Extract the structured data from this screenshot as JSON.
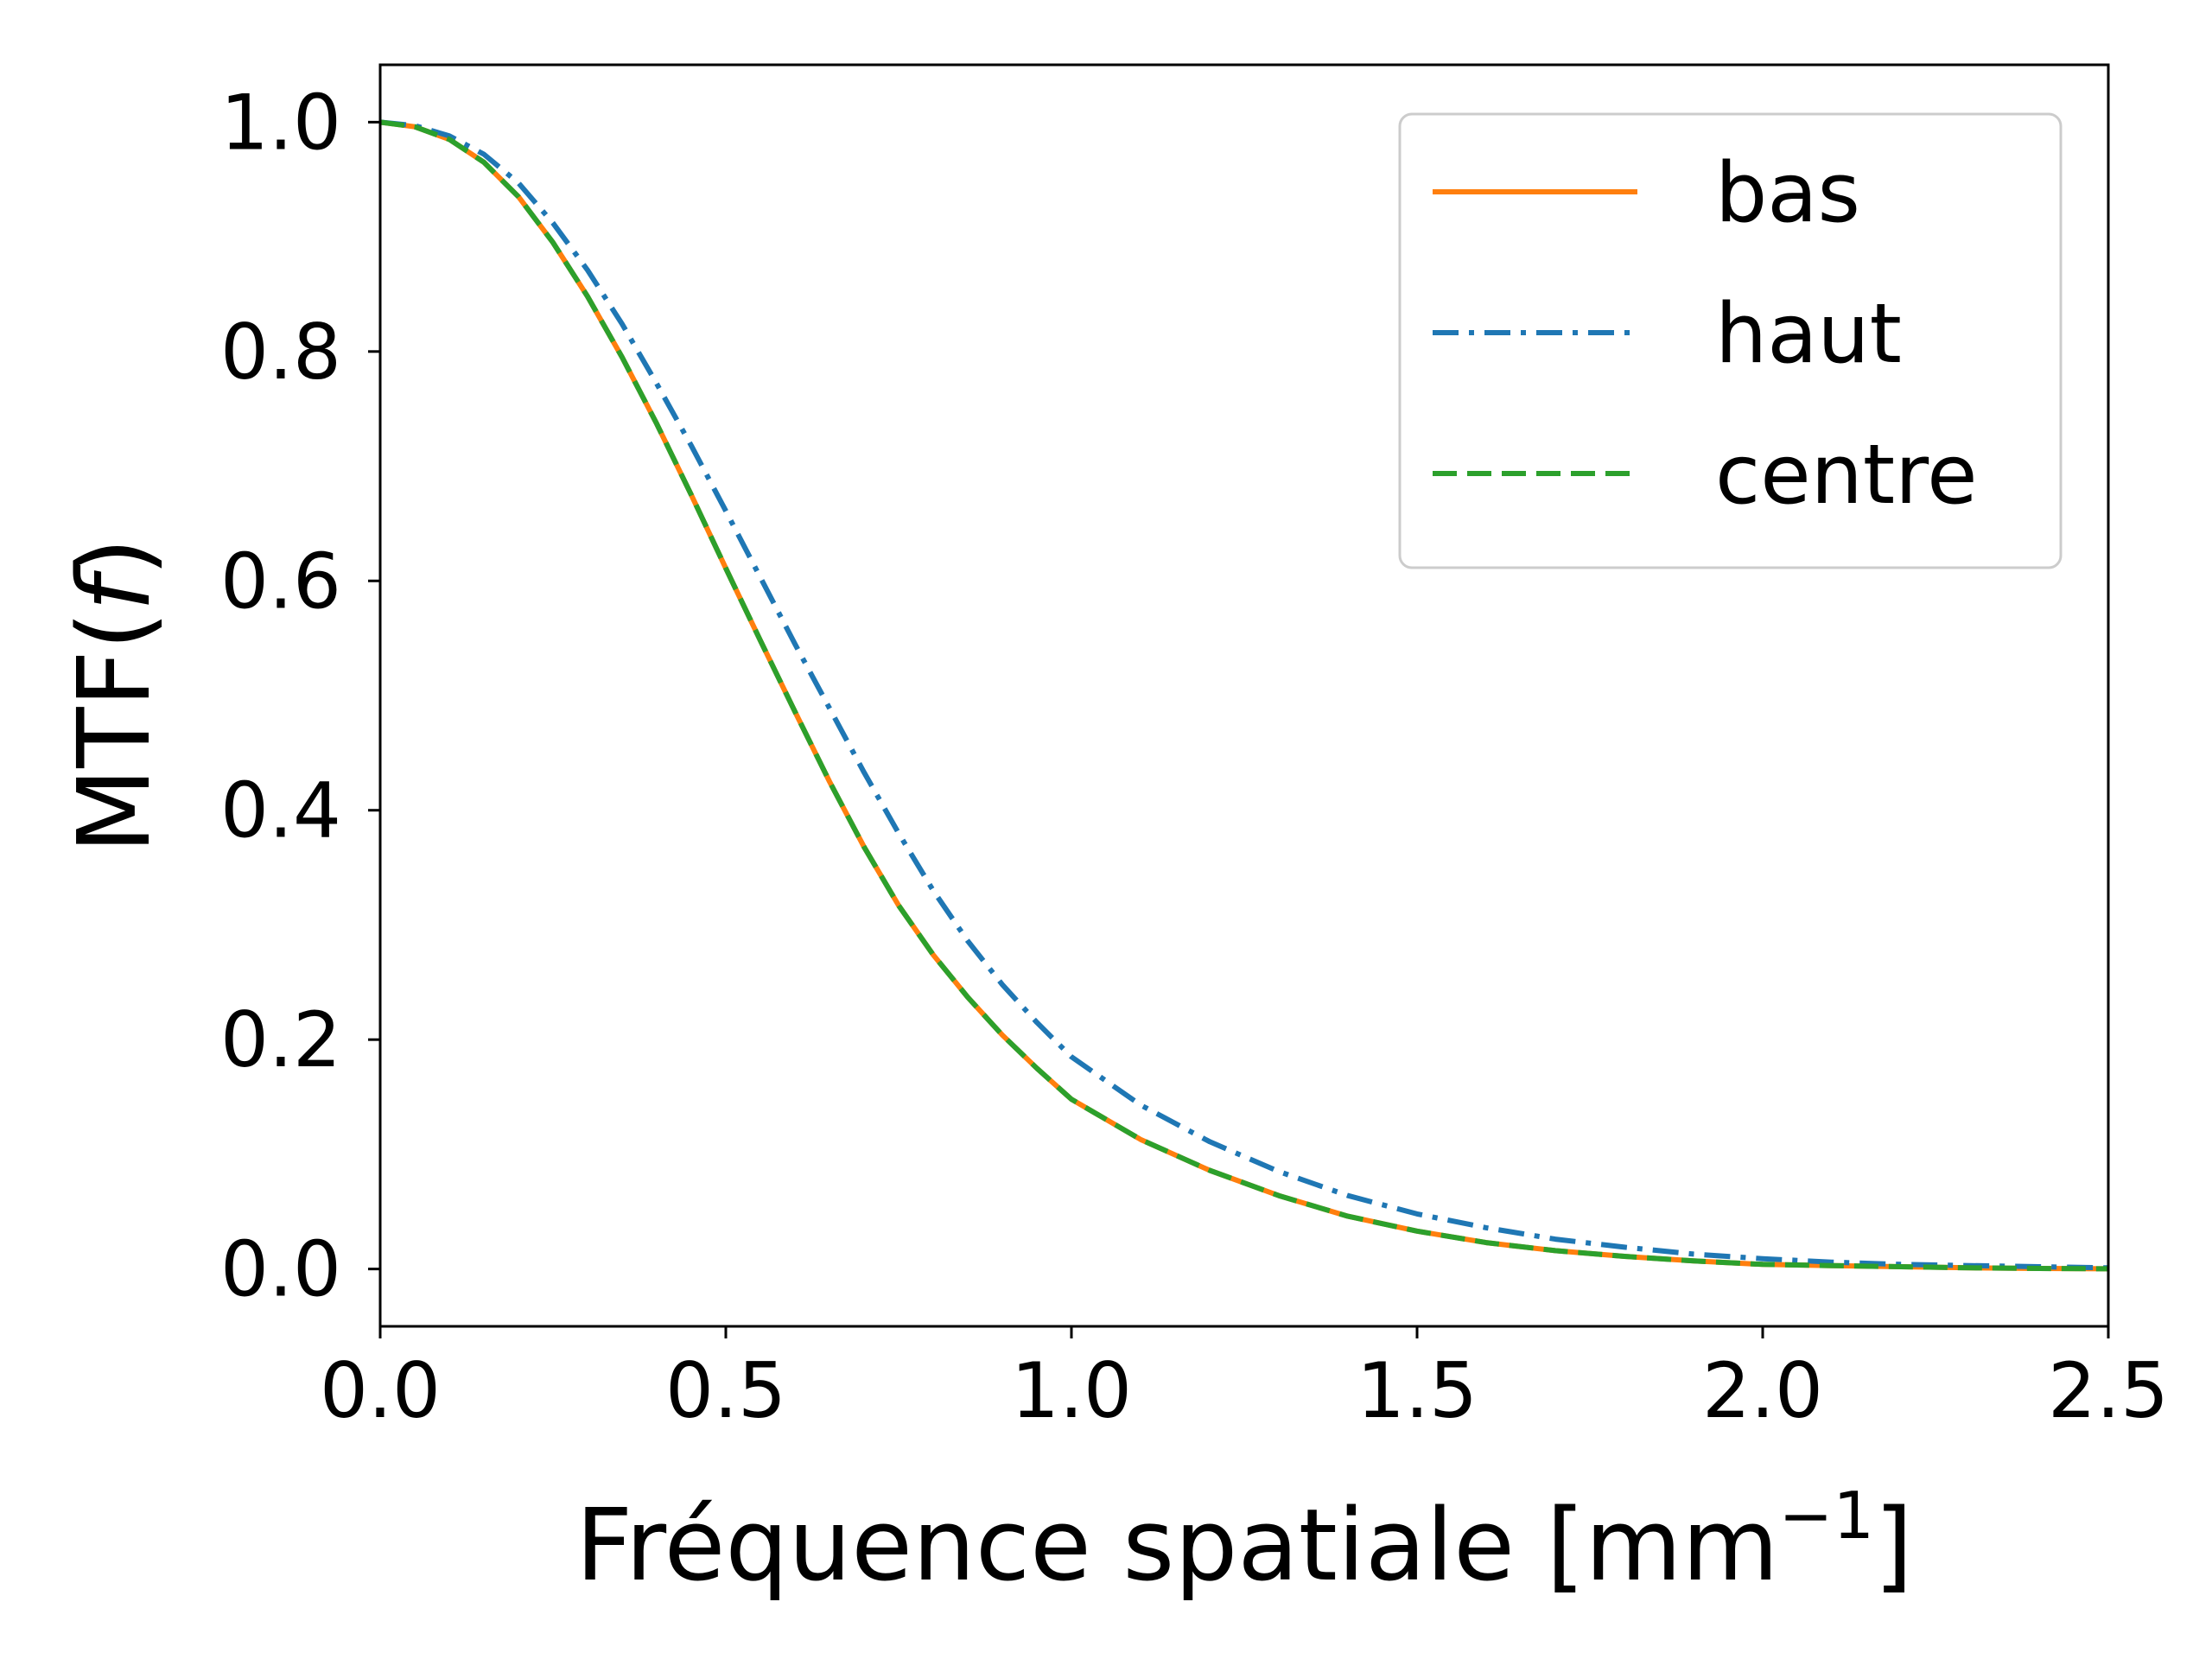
{
  "chart_data": {
    "type": "line",
    "xlabel": "Fréquence spatiale [mm",
    "xlabel_exp": "−1",
    "xlabel_end": "]",
    "ylabel_pre": "MTF(",
    "ylabel_var": "f",
    "ylabel_post": ")",
    "xlim": [
      0.0,
      2.5
    ],
    "ylim": [
      -0.05,
      1.05
    ],
    "xticks": [
      0.0,
      0.5,
      1.0,
      1.5,
      2.0,
      2.5
    ],
    "xtick_labels": [
      "0.0",
      "0.5",
      "1.0",
      "1.5",
      "2.0",
      "2.5"
    ],
    "yticks": [
      0.0,
      0.2,
      0.4,
      0.6,
      0.8,
      1.0
    ],
    "ytick_labels": [
      "0.0",
      "0.2",
      "0.4",
      "0.6",
      "0.8",
      "1.0"
    ],
    "grid": false,
    "legend_position": "top-right",
    "series": [
      {
        "name": "bas",
        "color": "#ff7f0e",
        "linestyle": "solid",
        "x": [
          0.0,
          0.05,
          0.1,
          0.15,
          0.2,
          0.25,
          0.3,
          0.35,
          0.4,
          0.45,
          0.5,
          0.55,
          0.6,
          0.65,
          0.7,
          0.75,
          0.8,
          0.85,
          0.9,
          0.95,
          1.0,
          1.1,
          1.2,
          1.3,
          1.4,
          1.5,
          1.6,
          1.7,
          1.8,
          1.9,
          2.0,
          2.1,
          2.2,
          2.3,
          2.4,
          2.5
        ],
        "y": [
          1.0,
          0.996,
          0.985,
          0.965,
          0.935,
          0.895,
          0.848,
          0.795,
          0.737,
          0.675,
          0.611,
          0.548,
          0.486,
          0.425,
          0.368,
          0.317,
          0.274,
          0.237,
          0.204,
          0.175,
          0.148,
          0.113,
          0.086,
          0.064,
          0.046,
          0.033,
          0.023,
          0.016,
          0.011,
          0.007,
          0.004,
          0.003,
          0.002,
          0.001,
          0.0005,
          0.0002
        ]
      },
      {
        "name": "haut",
        "color": "#1f77b4",
        "linestyle": "dashdot",
        "x": [
          0.0,
          0.05,
          0.1,
          0.15,
          0.2,
          0.25,
          0.3,
          0.35,
          0.4,
          0.45,
          0.5,
          0.55,
          0.6,
          0.65,
          0.7,
          0.75,
          0.8,
          0.85,
          0.9,
          0.95,
          1.0,
          1.1,
          1.2,
          1.3,
          1.4,
          1.5,
          1.6,
          1.7,
          1.8,
          1.9,
          2.0,
          2.1,
          2.2,
          2.3,
          2.4,
          2.5
        ],
        "y": [
          1.0,
          0.997,
          0.988,
          0.972,
          0.947,
          0.912,
          0.871,
          0.824,
          0.772,
          0.718,
          0.661,
          0.603,
          0.545,
          0.489,
          0.433,
          0.38,
          0.33,
          0.286,
          0.248,
          0.215,
          0.185,
          0.143,
          0.111,
          0.085,
          0.064,
          0.048,
          0.036,
          0.026,
          0.019,
          0.013,
          0.009,
          0.006,
          0.004,
          0.003,
          0.002,
          0.001
        ]
      },
      {
        "name": "centre",
        "color": "#2ca02c",
        "linestyle": "dashed",
        "x": [
          0.0,
          0.05,
          0.1,
          0.15,
          0.2,
          0.25,
          0.3,
          0.35,
          0.4,
          0.45,
          0.5,
          0.55,
          0.6,
          0.65,
          0.7,
          0.75,
          0.8,
          0.85,
          0.9,
          0.95,
          1.0,
          1.1,
          1.2,
          1.3,
          1.4,
          1.5,
          1.6,
          1.7,
          1.8,
          1.9,
          2.0,
          2.1,
          2.2,
          2.3,
          2.4,
          2.5
        ],
        "y": [
          1.0,
          0.996,
          0.985,
          0.965,
          0.935,
          0.895,
          0.848,
          0.795,
          0.737,
          0.675,
          0.611,
          0.548,
          0.486,
          0.425,
          0.368,
          0.317,
          0.274,
          0.237,
          0.204,
          0.175,
          0.148,
          0.113,
          0.086,
          0.064,
          0.046,
          0.033,
          0.023,
          0.016,
          0.011,
          0.007,
          0.004,
          0.003,
          0.002,
          0.001,
          0.0005,
          0.0002
        ]
      }
    ]
  }
}
